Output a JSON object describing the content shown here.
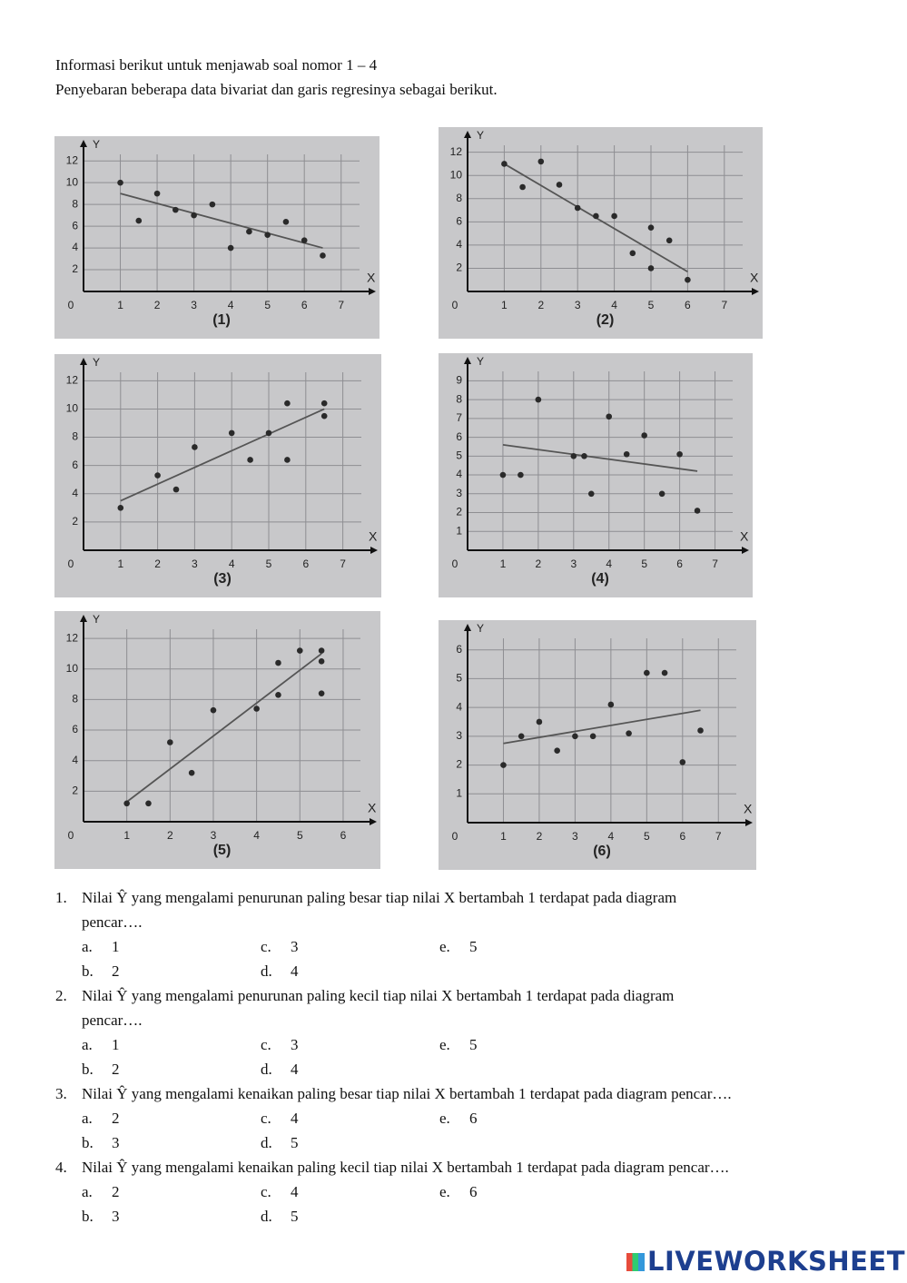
{
  "header": {
    "line1": "Informasi berikut untuk menjawab soal nomor 1 – 4",
    "line2": "Penyebaran beberapa data bivariat dan garis regresinya sebagai berikut."
  },
  "chart_data": [
    {
      "type": "scatter",
      "caption": "(1)",
      "x_label": "X",
      "y_label": "Y",
      "x": [
        1,
        1.5,
        2,
        2.5,
        3,
        3.5,
        4,
        4.5,
        5,
        5.5,
        6,
        6.5
      ],
      "y": [
        10,
        6.5,
        9,
        7.5,
        7,
        8,
        4,
        5.5,
        5.2,
        6.4,
        4.7,
        3.3
      ],
      "trendline": {
        "x": [
          1,
          6.5
        ],
        "y": [
          9,
          4
        ]
      },
      "xlim": [
        0,
        7.5
      ],
      "ylim": [
        0,
        12.6
      ],
      "xticks": [
        0,
        1,
        2,
        3,
        4,
        5,
        6,
        7
      ],
      "yticks": [
        2,
        4,
        6,
        8,
        10,
        12
      ],
      "grid": true,
      "color": "#2a2a2a"
    },
    {
      "type": "scatter",
      "caption": "(2)",
      "x_label": "X",
      "y_label": "Y",
      "x": [
        1,
        1.5,
        2,
        2.5,
        3,
        3.5,
        4,
        4.5,
        5,
        5,
        5.5,
        6
      ],
      "y": [
        11,
        9,
        11.2,
        9.2,
        7.2,
        6.5,
        6.5,
        3.3,
        5.5,
        2,
        4.4,
        1
      ],
      "trendline": {
        "x": [
          1,
          6
        ],
        "y": [
          11,
          1.7
        ]
      },
      "xlim": [
        0,
        7.5
      ],
      "ylim": [
        0,
        12.6
      ],
      "xticks": [
        0,
        1,
        2,
        3,
        4,
        5,
        6,
        7
      ],
      "yticks": [
        2,
        4,
        6,
        8,
        10,
        12
      ],
      "grid": true,
      "color": "#2a2a2a"
    },
    {
      "type": "scatter",
      "caption": "(3)",
      "x_label": "X",
      "y_label": "Y",
      "x": [
        1,
        2,
        2.5,
        3,
        4,
        4.5,
        5,
        5.5,
        5.5,
        6.5,
        6.5
      ],
      "y": [
        3,
        5.3,
        4.3,
        7.3,
        8.3,
        6.4,
        8.3,
        10.4,
        6.4,
        10.4,
        9.5
      ],
      "trendline": {
        "x": [
          1,
          6.5
        ],
        "y": [
          3.5,
          10
        ]
      },
      "xlim": [
        0,
        7.5
      ],
      "ylim": [
        0,
        12.6
      ],
      "xticks": [
        0,
        1,
        2,
        3,
        4,
        5,
        6,
        7
      ],
      "yticks": [
        2,
        4,
        6,
        8,
        10,
        12
      ],
      "grid": true,
      "color": "#2a2a2a"
    },
    {
      "type": "scatter",
      "caption": "(4)",
      "x_label": "X",
      "y_label": "Y",
      "x": [
        1,
        1.5,
        2,
        3,
        3.3,
        3.5,
        4,
        4.5,
        5,
        5.5,
        6,
        6.5
      ],
      "y": [
        4,
        4,
        8,
        5,
        5,
        3,
        7.1,
        5.1,
        6.1,
        3,
        5.1,
        2.1
      ],
      "trendline": {
        "x": [
          1,
          6.5
        ],
        "y": [
          5.6,
          4.2
        ]
      },
      "xlim": [
        0,
        7.5
      ],
      "ylim": [
        0,
        9.5
      ],
      "xticks": [
        0,
        1,
        2,
        3,
        4,
        5,
        6,
        7
      ],
      "yticks": [
        1,
        2,
        3,
        4,
        5,
        6,
        7,
        8,
        9
      ],
      "grid": true,
      "color": "#2a2a2a"
    },
    {
      "type": "scatter",
      "caption": "(5)",
      "x_label": "X",
      "y_label": "Y",
      "x": [
        1,
        1.5,
        2,
        2.5,
        3,
        4,
        4.5,
        4.5,
        5,
        5.5,
        5.5,
        5.5
      ],
      "y": [
        1.2,
        1.2,
        5.2,
        3.2,
        7.3,
        7.4,
        10.4,
        8.3,
        11.2,
        11.2,
        10.5,
        8.4
      ],
      "trendline": {
        "x": [
          1,
          5.5
        ],
        "y": [
          1.3,
          11
        ]
      },
      "xlim": [
        0,
        6.4
      ],
      "ylim": [
        0,
        12.6
      ],
      "xticks": [
        0,
        1,
        2,
        3,
        4,
        5,
        6
      ],
      "yticks": [
        2,
        4,
        6,
        8,
        10,
        12
      ],
      "grid": true,
      "color": "#2a2a2a"
    },
    {
      "type": "scatter",
      "caption": "(6)",
      "x_label": "X",
      "y_label": "Y",
      "x": [
        1,
        1.5,
        2,
        2.5,
        3,
        3.5,
        4,
        4.5,
        5,
        5.5,
        6,
        6.5
      ],
      "y": [
        2,
        3,
        3.5,
        2.5,
        3,
        3,
        4.1,
        3.1,
        5.2,
        5.2,
        2.1,
        3.2
      ],
      "trendline": {
        "x": [
          1,
          6.5
        ],
        "y": [
          2.75,
          3.9
        ]
      },
      "xlim": [
        0,
        7.5
      ],
      "ylim": [
        0,
        6.4
      ],
      "xticks": [
        0,
        1,
        2,
        3,
        4,
        5,
        6,
        7
      ],
      "yticks": [
        1,
        2,
        3,
        4,
        5,
        6
      ],
      "grid": true,
      "color": "#2a2a2a"
    }
  ],
  "questions": [
    {
      "number": "1.",
      "lines": [
        "Nilai Ŷ yang mengalami penurunan paling besar tiap nilai X bertambah 1 terdapat pada diagram",
        "pencar…."
      ],
      "options": [
        {
          "letter": "a.",
          "text": "1"
        },
        {
          "letter": "b.",
          "text": "2"
        },
        {
          "letter": "c.",
          "text": "3"
        },
        {
          "letter": "d.",
          "text": "4"
        },
        {
          "letter": "e.",
          "text": "5"
        }
      ]
    },
    {
      "number": "2.",
      "lines": [
        "Nilai Ŷ yang mengalami penurunan paling kecil tiap nilai X bertambah 1 terdapat pada diagram",
        "pencar…."
      ],
      "options": [
        {
          "letter": "a.",
          "text": "1"
        },
        {
          "letter": "b.",
          "text": "2"
        },
        {
          "letter": "c.",
          "text": "3"
        },
        {
          "letter": "d.",
          "text": "4"
        },
        {
          "letter": "e.",
          "text": "5"
        }
      ]
    },
    {
      "number": "3.",
      "lines": [
        "Nilai Ŷ yang mengalami kenaikan paling besar tiap nilai X bertambah 1 terdapat pada diagram pencar…."
      ],
      "options": [
        {
          "letter": "a.",
          "text": "2"
        },
        {
          "letter": "b.",
          "text": "3"
        },
        {
          "letter": "c.",
          "text": "4"
        },
        {
          "letter": "d.",
          "text": "5"
        },
        {
          "letter": "e.",
          "text": "6"
        }
      ]
    },
    {
      "number": "4.",
      "lines": [
        "Nilai Ŷ yang mengalami kenaikan paling kecil tiap nilai X bertambah 1 terdapat pada diagram pencar…."
      ],
      "options": [
        {
          "letter": "a.",
          "text": "2"
        },
        {
          "letter": "b.",
          "text": "3"
        },
        {
          "letter": "c.",
          "text": "4"
        },
        {
          "letter": "d.",
          "text": "5"
        },
        {
          "letter": "e.",
          "text": "6"
        }
      ]
    }
  ],
  "footer": {
    "logo": "LIVEWORKSHEETS"
  }
}
